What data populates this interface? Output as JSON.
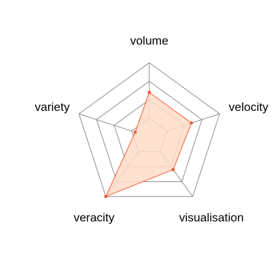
{
  "chart_data": {
    "type": "radar",
    "categories": [
      "volume",
      "velocity",
      "visualisation",
      "veracity",
      "variety"
    ],
    "series": [
      {
        "values": [
          0.6,
          0.6,
          0.55,
          1.0,
          0.2
        ],
        "fill_color": "#ffdcc8",
        "line_color": "#f05a32",
        "point_color": "#f05a32"
      }
    ],
    "range": [
      0,
      1
    ],
    "grid_levels": 4,
    "grid_color": "#8c8c8c"
  }
}
